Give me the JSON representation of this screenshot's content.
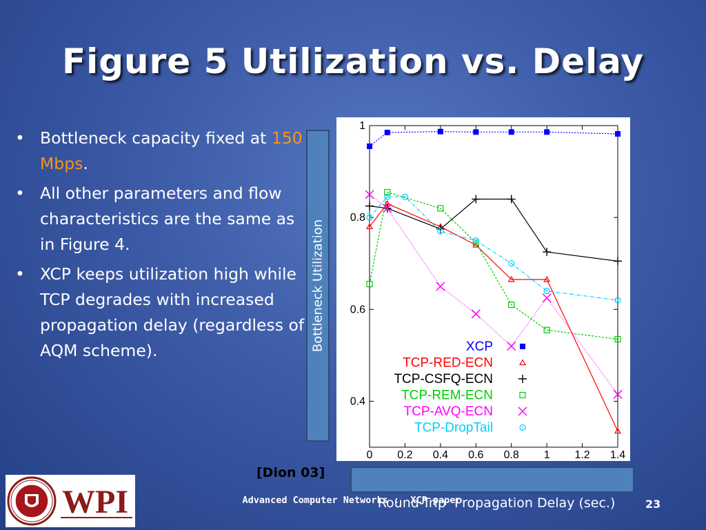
{
  "slide": {
    "title": "Figure 5 Utilization vs. Delay",
    "bullets": [
      {
        "pre": "Bottleneck capacity fixed at ",
        "highlight": "150 Mbps",
        "post": "."
      },
      {
        "text": "All other parameters and flow characteristics are the same as in Figure 4."
      },
      {
        "text": "XCP keeps utilization high while TCP degrades with increased propagation delay (regardless of AQM scheme)."
      }
    ],
    "highlight_color": "#f7941d",
    "ylabel": "Bottleneck Utilization",
    "xlabel": "Round-Trip  Propagation Delay (sec.)",
    "citation": "[Dion 03]",
    "footer": "Advanced Computer Networks :  XCP paper",
    "page_number": "23",
    "logo": {
      "text": "WPI",
      "seal": "WORCESTER POLYTECHNIC INSTITUTE 1865",
      "icon": "wpi-seal-icon"
    }
  },
  "chart_data": {
    "type": "line",
    "title": "",
    "xlabel": "Round-Trip  Propagation Delay (sec.)",
    "ylabel": "Bottleneck Utilization",
    "xlim": [
      0,
      1.4
    ],
    "ylim": [
      0.3,
      1.0
    ],
    "xticks": [
      "0",
      "0.2",
      "0.4",
      "0.6",
      "0.8",
      "1",
      "1.2",
      "1.4"
    ],
    "yticks": [
      "0.4",
      "0.6",
      "0.8",
      "1"
    ],
    "grid": false,
    "legend_position": "bottom-right",
    "series": [
      {
        "name": "XCP",
        "color": "#0000ff",
        "marker": "filled-square",
        "dash": "2,2",
        "x": [
          0.0,
          0.1,
          0.4,
          0.6,
          0.8,
          1.0,
          1.4
        ],
        "y": [
          0.955,
          0.985,
          0.987,
          0.986,
          0.986,
          0.986,
          0.982
        ]
      },
      {
        "name": "TCP-RED-ECN",
        "color": "#ff0000",
        "marker": "triangle",
        "dash": "",
        "x": [
          0.0,
          0.1,
          0.4,
          0.6,
          0.8,
          1.0,
          1.4
        ],
        "y": [
          0.78,
          0.83,
          0.78,
          0.74,
          0.665,
          0.665,
          0.335
        ]
      },
      {
        "name": "TCP-CSFQ-ECN",
        "color": "#000000",
        "marker": "plus",
        "dash": "",
        "x": [
          0.0,
          0.1,
          0.4,
          0.6,
          0.8,
          1.0,
          1.4
        ],
        "y": [
          0.825,
          0.82,
          0.775,
          0.84,
          0.84,
          0.725,
          0.705
        ]
      },
      {
        "name": "TCP-REM-ECN",
        "color": "#00cc00",
        "marker": "open-square",
        "dash": "3,2",
        "x": [
          0.0,
          0.1,
          0.4,
          0.6,
          0.8,
          1.0,
          1.4
        ],
        "y": [
          0.655,
          0.855,
          0.82,
          0.745,
          0.61,
          0.555,
          0.535
        ]
      },
      {
        "name": "TCP-AVQ-ECN",
        "color": "#ff00ff",
        "marker": "cross",
        "dash": "1,2",
        "x": [
          0.0,
          0.1,
          0.4,
          0.6,
          0.8,
          1.0,
          1.4
        ],
        "y": [
          0.85,
          0.82,
          0.65,
          0.59,
          0.52,
          0.625,
          0.415
        ]
      },
      {
        "name": "TCP-DropTail",
        "color": "#00ccff",
        "marker": "circle",
        "dash": "5,2,1,2",
        "x": [
          0.0,
          0.1,
          0.2,
          0.4,
          0.6,
          0.8,
          1.0,
          1.4
        ],
        "y": [
          0.8,
          0.845,
          0.845,
          0.77,
          0.75,
          0.7,
          0.64,
          0.62
        ]
      }
    ]
  }
}
